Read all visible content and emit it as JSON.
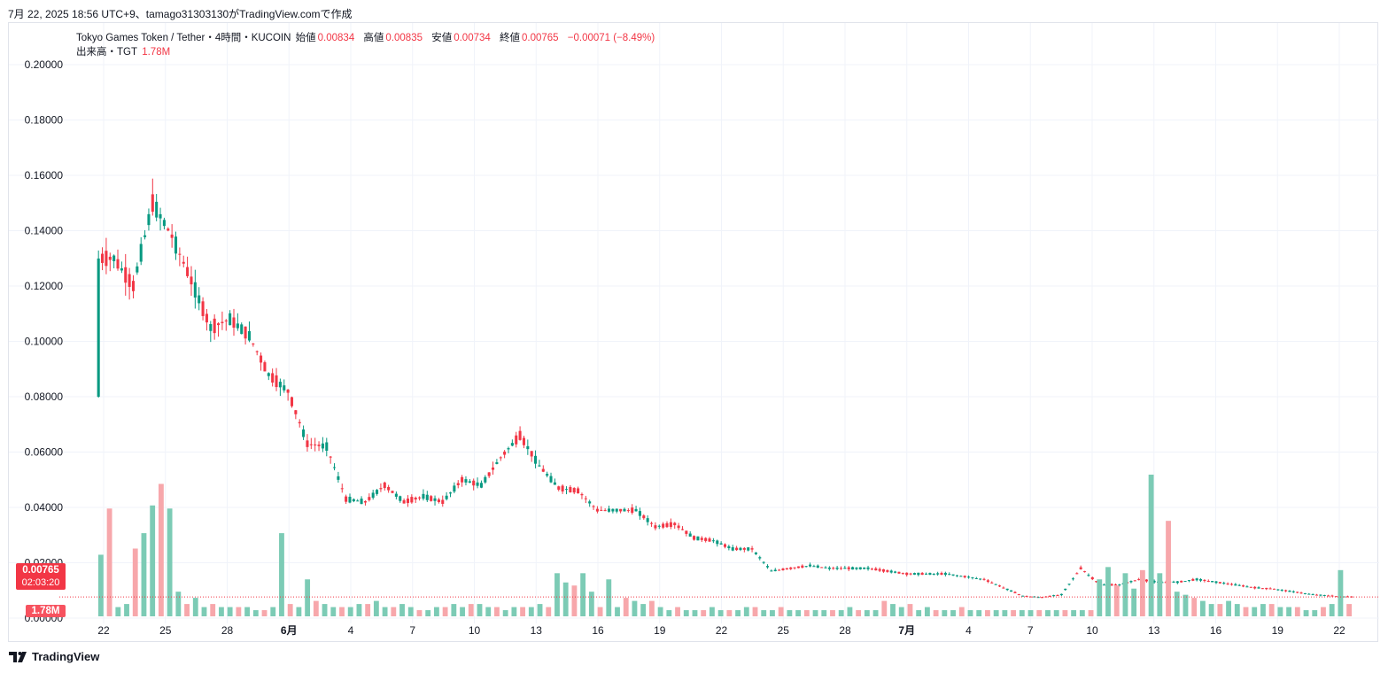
{
  "caption": "7月 22, 2025 18:56 UTC+9、tamago31303130がTradingView.comで作成",
  "legend": {
    "symbol": "Tokyo Games Token / Tether・4時間・KUCOIN",
    "open_label": "始値",
    "open_value": "0.00834",
    "high_label": "高値",
    "high_value": "0.00835",
    "low_label": "安値",
    "low_value": "0.00734",
    "close_label": "終値",
    "close_value": "0.00765",
    "change": "−0.00071 (−8.49%)",
    "volume_label": "出来高・TGT",
    "volume_value": "1.78M"
  },
  "price_badge": {
    "price": "0.00765",
    "countdown": "02:03:20"
  },
  "volume_badge": "1.78M",
  "footer": {
    "brand": "TradingView",
    "icon": "tradingview-logo-icon"
  },
  "colors": {
    "up": "#089981",
    "down": "#f23645",
    "up_volume": "#7ccbb5",
    "down_volume": "#f7a7ab",
    "grid": "#f0f3fa"
  },
  "chart_data": {
    "type": "candlestick",
    "title": "Tokyo Games Token / Tether・4時間・KUCOIN",
    "ylim": [
      0,
      0.2
    ],
    "y_ticks": [
      "0.20000",
      "0.18000",
      "0.16000",
      "0.14000",
      "0.12000",
      "0.10000",
      "0.08000",
      "0.06000",
      "0.04000",
      "0.02000",
      "0.00000"
    ],
    "x_ticks": [
      "22",
      "25",
      "28",
      "6月",
      "4",
      "7",
      "10",
      "13",
      "16",
      "19",
      "22",
      "25",
      "28",
      "7月",
      "4",
      "7",
      "10",
      "13",
      "16",
      "19",
      "22"
    ],
    "bold_ticks": [
      "6月",
      "7月"
    ],
    "grid": true,
    "last_price": 0.00765,
    "series": [
      {
        "name": "price",
        "points": [
          {
            "x": "5/22",
            "close": 0.13
          },
          {
            "x": "5/22",
            "close": 0.12
          },
          {
            "x": "5/23",
            "close": 0.15
          },
          {
            "x": "5/23",
            "close": 0.138
          },
          {
            "x": "5/24",
            "close": 0.122
          },
          {
            "x": "5/24",
            "close": 0.105
          },
          {
            "x": "5/25",
            "close": 0.108
          },
          {
            "x": "5/26",
            "close": 0.102
          },
          {
            "x": "5/27",
            "close": 0.088
          },
          {
            "x": "5/28",
            "close": 0.082
          },
          {
            "x": "5/29",
            "close": 0.063
          },
          {
            "x": "5/30",
            "close": 0.062
          },
          {
            "x": "5/31",
            "close": 0.043
          },
          {
            "x": "6/1",
            "close": 0.042
          },
          {
            "x": "6/2",
            "close": 0.048
          },
          {
            "x": "6/3",
            "close": 0.042
          },
          {
            "x": "6/4",
            "close": 0.044
          },
          {
            "x": "6/5",
            "close": 0.042
          },
          {
            "x": "6/6",
            "close": 0.05
          },
          {
            "x": "6/7",
            "close": 0.048
          },
          {
            "x": "6/8",
            "close": 0.058
          },
          {
            "x": "6/9",
            "close": 0.066
          },
          {
            "x": "6/10",
            "close": 0.055
          },
          {
            "x": "6/11",
            "close": 0.047
          },
          {
            "x": "6/12",
            "close": 0.046
          },
          {
            "x": "6/13",
            "close": 0.039
          },
          {
            "x": "6/14",
            "close": 0.039
          },
          {
            "x": "6/15",
            "close": 0.039
          },
          {
            "x": "6/16",
            "close": 0.033
          },
          {
            "x": "6/17",
            "close": 0.034
          },
          {
            "x": "6/18",
            "close": 0.029
          },
          {
            "x": "6/19",
            "close": 0.028
          },
          {
            "x": "6/20",
            "close": 0.025
          },
          {
            "x": "6/21",
            "close": 0.025
          },
          {
            "x": "6/22",
            "close": 0.017
          },
          {
            "x": "6/23",
            "close": 0.018
          },
          {
            "x": "6/24",
            "close": 0.019
          },
          {
            "x": "6/25",
            "close": 0.018
          },
          {
            "x": "6/26",
            "close": 0.018
          },
          {
            "x": "6/27",
            "close": 0.018
          },
          {
            "x": "6/28",
            "close": 0.017
          },
          {
            "x": "6/29",
            "close": 0.016
          },
          {
            "x": "6/30",
            "close": 0.016
          },
          {
            "x": "7/1",
            "close": 0.016
          },
          {
            "x": "7/2",
            "close": 0.015
          },
          {
            "x": "7/3",
            "close": 0.014
          },
          {
            "x": "7/4",
            "close": 0.011
          },
          {
            "x": "7/5",
            "close": 0.008
          },
          {
            "x": "7/6",
            "close": 0.0075
          },
          {
            "x": "7/7",
            "close": 0.0085
          },
          {
            "x": "7/8",
            "close": 0.018
          },
          {
            "x": "7/9",
            "close": 0.012
          },
          {
            "x": "7/10",
            "close": 0.012
          },
          {
            "x": "7/11",
            "close": 0.014
          },
          {
            "x": "7/12",
            "close": 0.013
          },
          {
            "x": "7/13",
            "close": 0.013
          },
          {
            "x": "7/14",
            "close": 0.014
          },
          {
            "x": "7/15",
            "close": 0.013
          },
          {
            "x": "7/16",
            "close": 0.012
          },
          {
            "x": "7/17",
            "close": 0.011
          },
          {
            "x": "7/18",
            "close": 0.0105
          },
          {
            "x": "7/19",
            "close": 0.0095
          },
          {
            "x": "7/20",
            "close": 0.0085
          },
          {
            "x": "7/21",
            "close": 0.008
          },
          {
            "x": "7/22",
            "close": 0.00765
          }
        ]
      }
    ],
    "volume": [
      20,
      35,
      3,
      4,
      22,
      27,
      36,
      43,
      35,
      8,
      4,
      6,
      3,
      4,
      3,
      3,
      3,
      3,
      2,
      2,
      3,
      27,
      4,
      3,
      12,
      5,
      4,
      3,
      3,
      3,
      4,
      4,
      5,
      3,
      3,
      4,
      3,
      2,
      2,
      3,
      3,
      4,
      3,
      4,
      4,
      3,
      3,
      2,
      3,
      3,
      3,
      4,
      3,
      14,
      11,
      10,
      14,
      8,
      3,
      12,
      3,
      6,
      5,
      4,
      5,
      3,
      2,
      3,
      2,
      2,
      2,
      3,
      2,
      2,
      2,
      3,
      3,
      2,
      2,
      3,
      2,
      2,
      2,
      2,
      2,
      2,
      2,
      3,
      2,
      2,
      2,
      5,
      4,
      3,
      4,
      2,
      3,
      2,
      2,
      2,
      3,
      2,
      2,
      2,
      2,
      2,
      2,
      2,
      2,
      2,
      2,
      2,
      2,
      2,
      2,
      2,
      12,
      16,
      10,
      14,
      9,
      15,
      46,
      14,
      31,
      8,
      7,
      6,
      5,
      4,
      4,
      5,
      4,
      3,
      3,
      4,
      4,
      3,
      3,
      3,
      2,
      2,
      3,
      4,
      15,
      4
    ]
  }
}
